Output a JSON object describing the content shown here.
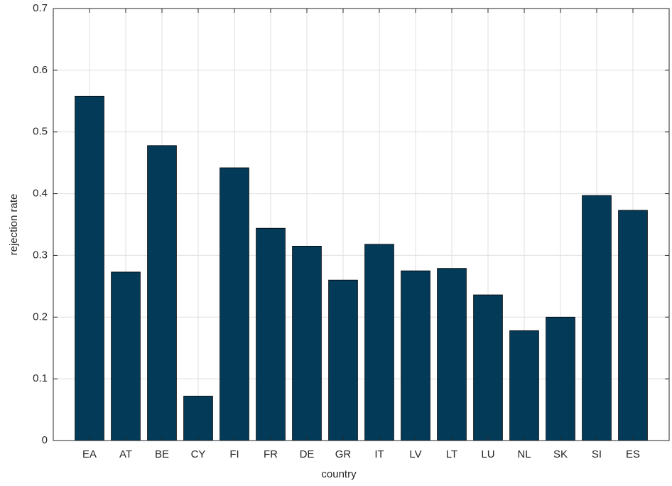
{
  "chart_data": {
    "type": "bar",
    "xlabel": "country",
    "ylabel": "rejection rate",
    "categories": [
      "EA",
      "AT",
      "BE",
      "CY",
      "FI",
      "FR",
      "DE",
      "GR",
      "IT",
      "LV",
      "LT",
      "LU",
      "NL",
      "SK",
      "SI",
      "ES"
    ],
    "values": [
      0.558,
      0.273,
      0.478,
      0.072,
      0.442,
      0.344,
      0.315,
      0.26,
      0.318,
      0.275,
      0.279,
      0.236,
      0.178,
      0.2,
      0.397,
      0.373
    ],
    "color": "#023a58",
    "ylim": [
      0,
      0.7
    ],
    "yticks": [
      0,
      0.1,
      0.2,
      0.3,
      0.4,
      0.5,
      0.6,
      0.7
    ],
    "grid": true
  }
}
